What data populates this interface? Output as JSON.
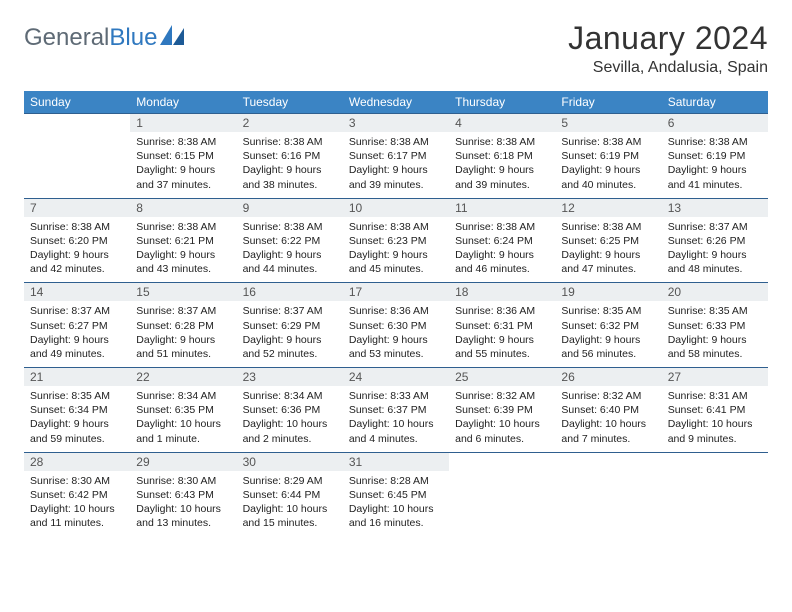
{
  "brand": {
    "part1": "General",
    "part2": "Blue"
  },
  "title": "January 2024",
  "location": "Sevilla, Andalusia, Spain",
  "colors": {
    "header_bg": "#3b84c4",
    "header_text": "#ffffff",
    "daynum_bg": "#eceff1",
    "rule": "#2f5f8f",
    "text": "#222222",
    "logo_gray": "#5e6a75",
    "logo_blue": "#2f78bf"
  },
  "weekdays": [
    "Sunday",
    "Monday",
    "Tuesday",
    "Wednesday",
    "Thursday",
    "Friday",
    "Saturday"
  ],
  "weeks": [
    [
      null,
      {
        "n": "1",
        "sr": "8:38 AM",
        "ss": "6:15 PM",
        "dl": "9 hours and 37 minutes."
      },
      {
        "n": "2",
        "sr": "8:38 AM",
        "ss": "6:16 PM",
        "dl": "9 hours and 38 minutes."
      },
      {
        "n": "3",
        "sr": "8:38 AM",
        "ss": "6:17 PM",
        "dl": "9 hours and 39 minutes."
      },
      {
        "n": "4",
        "sr": "8:38 AM",
        "ss": "6:18 PM",
        "dl": "9 hours and 39 minutes."
      },
      {
        "n": "5",
        "sr": "8:38 AM",
        "ss": "6:19 PM",
        "dl": "9 hours and 40 minutes."
      },
      {
        "n": "6",
        "sr": "8:38 AM",
        "ss": "6:19 PM",
        "dl": "9 hours and 41 minutes."
      }
    ],
    [
      {
        "n": "7",
        "sr": "8:38 AM",
        "ss": "6:20 PM",
        "dl": "9 hours and 42 minutes."
      },
      {
        "n": "8",
        "sr": "8:38 AM",
        "ss": "6:21 PM",
        "dl": "9 hours and 43 minutes."
      },
      {
        "n": "9",
        "sr": "8:38 AM",
        "ss": "6:22 PM",
        "dl": "9 hours and 44 minutes."
      },
      {
        "n": "10",
        "sr": "8:38 AM",
        "ss": "6:23 PM",
        "dl": "9 hours and 45 minutes."
      },
      {
        "n": "11",
        "sr": "8:38 AM",
        "ss": "6:24 PM",
        "dl": "9 hours and 46 minutes."
      },
      {
        "n": "12",
        "sr": "8:38 AM",
        "ss": "6:25 PM",
        "dl": "9 hours and 47 minutes."
      },
      {
        "n": "13",
        "sr": "8:37 AM",
        "ss": "6:26 PM",
        "dl": "9 hours and 48 minutes."
      }
    ],
    [
      {
        "n": "14",
        "sr": "8:37 AM",
        "ss": "6:27 PM",
        "dl": "9 hours and 49 minutes."
      },
      {
        "n": "15",
        "sr": "8:37 AM",
        "ss": "6:28 PM",
        "dl": "9 hours and 51 minutes."
      },
      {
        "n": "16",
        "sr": "8:37 AM",
        "ss": "6:29 PM",
        "dl": "9 hours and 52 minutes."
      },
      {
        "n": "17",
        "sr": "8:36 AM",
        "ss": "6:30 PM",
        "dl": "9 hours and 53 minutes."
      },
      {
        "n": "18",
        "sr": "8:36 AM",
        "ss": "6:31 PM",
        "dl": "9 hours and 55 minutes."
      },
      {
        "n": "19",
        "sr": "8:35 AM",
        "ss": "6:32 PM",
        "dl": "9 hours and 56 minutes."
      },
      {
        "n": "20",
        "sr": "8:35 AM",
        "ss": "6:33 PM",
        "dl": "9 hours and 58 minutes."
      }
    ],
    [
      {
        "n": "21",
        "sr": "8:35 AM",
        "ss": "6:34 PM",
        "dl": "9 hours and 59 minutes."
      },
      {
        "n": "22",
        "sr": "8:34 AM",
        "ss": "6:35 PM",
        "dl": "10 hours and 1 minute."
      },
      {
        "n": "23",
        "sr": "8:34 AM",
        "ss": "6:36 PM",
        "dl": "10 hours and 2 minutes."
      },
      {
        "n": "24",
        "sr": "8:33 AM",
        "ss": "6:37 PM",
        "dl": "10 hours and 4 minutes."
      },
      {
        "n": "25",
        "sr": "8:32 AM",
        "ss": "6:39 PM",
        "dl": "10 hours and 6 minutes."
      },
      {
        "n": "26",
        "sr": "8:32 AM",
        "ss": "6:40 PM",
        "dl": "10 hours and 7 minutes."
      },
      {
        "n": "27",
        "sr": "8:31 AM",
        "ss": "6:41 PM",
        "dl": "10 hours and 9 minutes."
      }
    ],
    [
      {
        "n": "28",
        "sr": "8:30 AM",
        "ss": "6:42 PM",
        "dl": "10 hours and 11 minutes."
      },
      {
        "n": "29",
        "sr": "8:30 AM",
        "ss": "6:43 PM",
        "dl": "10 hours and 13 minutes."
      },
      {
        "n": "30",
        "sr": "8:29 AM",
        "ss": "6:44 PM",
        "dl": "10 hours and 15 minutes."
      },
      {
        "n": "31",
        "sr": "8:28 AM",
        "ss": "6:45 PM",
        "dl": "10 hours and 16 minutes."
      },
      null,
      null,
      null
    ]
  ],
  "labels": {
    "sunrise": "Sunrise:",
    "sunset": "Sunset:",
    "daylight": "Daylight:"
  }
}
